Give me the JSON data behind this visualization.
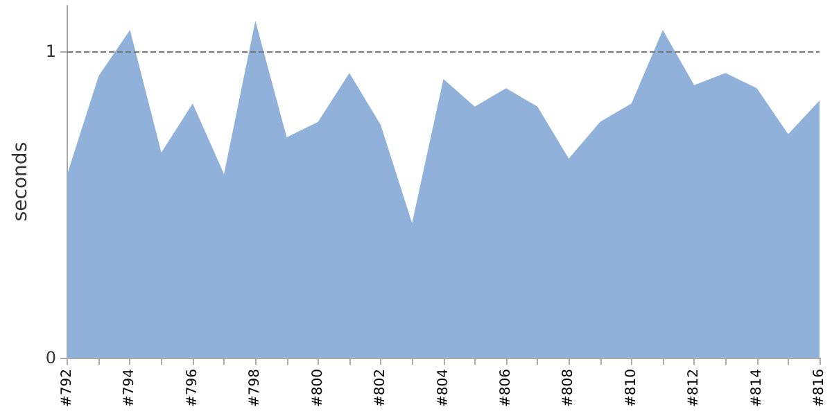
{
  "chart_data": {
    "type": "area",
    "ylabel": "seconds",
    "categories": [
      "#792",
      null,
      "#794",
      null,
      "#796",
      null,
      "#798",
      null,
      "#800",
      null,
      "#802",
      null,
      "#804",
      null,
      "#806",
      null,
      "#808",
      null,
      "#810",
      null,
      "#812",
      null,
      "#814",
      null,
      "#816"
    ],
    "series": [
      {
        "color": "#8fb1da",
        "values": [
          0.6,
          0.92,
          1.07,
          0.67,
          0.83,
          0.6,
          1.1,
          0.72,
          0.77,
          0.93,
          0.76,
          0.44,
          0.91,
          0.82,
          0.88,
          0.82,
          0.65,
          0.77,
          0.83,
          1.07,
          0.89,
          0.93,
          0.88,
          0.73,
          0.84
        ]
      }
    ],
    "ylim": [
      0,
      1.15
    ],
    "yticks": [
      0,
      1
    ],
    "ref_lines": [
      {
        "axis": "y",
        "value": 1,
        "color": "#777777",
        "line_style": "dashed"
      }
    ],
    "grid": false,
    "marker": "none"
  }
}
